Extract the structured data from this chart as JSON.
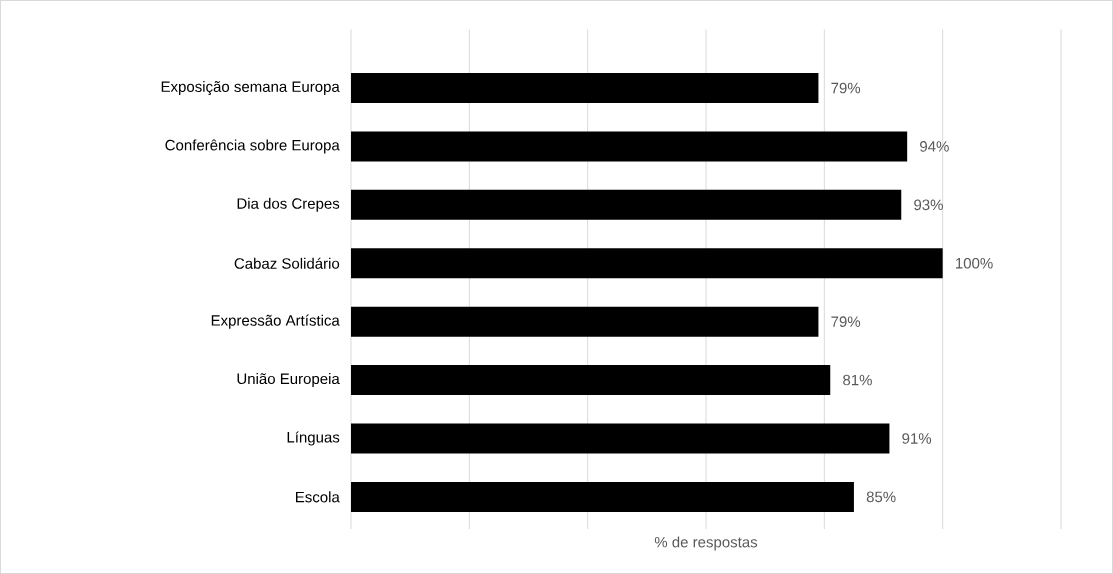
{
  "chart_data": {
    "type": "bar",
    "orientation": "horizontal",
    "xlabel": "% de respostas",
    "categories": [
      "Exposição semana Europa",
      "Conferência sobre Europa",
      "Dia dos Crepes",
      "Cabaz Solidário",
      "Expressão Artística",
      "União Europeia",
      "Línguas",
      "Escola"
    ],
    "values": [
      79,
      94,
      93,
      100,
      79,
      81,
      91,
      85
    ],
    "value_labels": [
      "79%",
      "94%",
      "93%",
      "100%",
      "79%",
      "81%",
      "91%",
      "85%"
    ],
    "color": "#000000",
    "xlim": [
      0,
      120
    ],
    "xticks": [
      {
        "value": 0,
        "label": null
      },
      {
        "value": 20,
        "label": null
      },
      {
        "value": 40,
        "label": null
      },
      {
        "value": 60,
        "label": null
      },
      {
        "value": 80,
        "label": null
      },
      {
        "value": 100,
        "label": null
      },
      {
        "value": 120,
        "label": null
      }
    ],
    "tick_labels": "y",
    "grid": "x"
  }
}
